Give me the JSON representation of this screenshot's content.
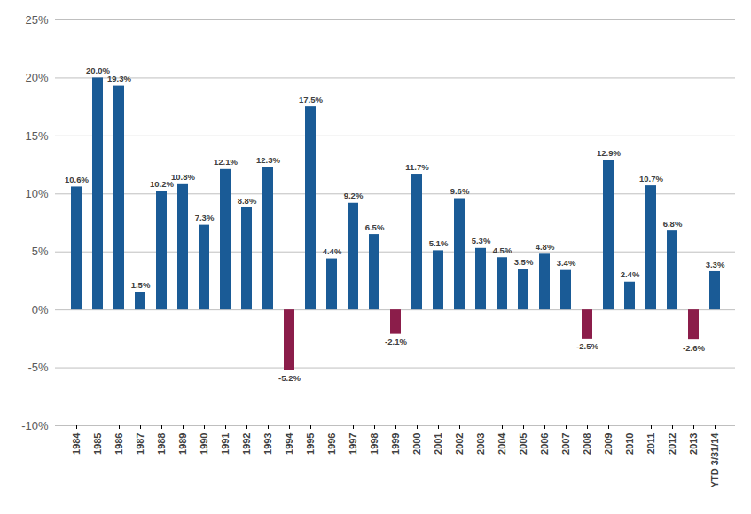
{
  "chart_data": {
    "type": "bar",
    "categories": [
      "1984",
      "1985",
      "1986",
      "1987",
      "1988",
      "1989",
      "1990",
      "1991",
      "1992",
      "1993",
      "1994",
      "1995",
      "1996",
      "1997",
      "1998",
      "1999",
      "2000",
      "2001",
      "2002",
      "2003",
      "2004",
      "2005",
      "2006",
      "2007",
      "2008",
      "2009",
      "2010",
      "2011",
      "2012",
      "2013",
      "YTD 3/31/14"
    ],
    "values": [
      10.6,
      20.0,
      19.3,
      1.5,
      10.2,
      10.8,
      7.3,
      12.1,
      8.8,
      12.3,
      -5.2,
      17.5,
      4.4,
      9.2,
      6.5,
      -2.1,
      11.7,
      5.1,
      9.6,
      5.3,
      4.5,
      3.5,
      4.8,
      3.4,
      -2.5,
      12.9,
      2.4,
      10.7,
      6.8,
      -2.6,
      3.3
    ],
    "value_labels": [
      "10.6%",
      "20.0%",
      "19.3%",
      "1.5%",
      "10.2%",
      "10.8%",
      "7.3%",
      "12.1%",
      "8.8%",
      "12.3%",
      "-5.2%",
      "17.5%",
      "4.4%",
      "9.2%",
      "6.5%",
      "-2.1%",
      "11.7%",
      "5.1%",
      "9.6%",
      "5.3%",
      "4.5%",
      "3.5%",
      "4.8%",
      "3.4%",
      "-2.5%",
      "12.9%",
      "2.4%",
      "10.7%",
      "6.8%",
      "-2.6%",
      "3.3%"
    ],
    "colors": [
      "#1a5b96",
      "#1a5b96",
      "#1a5b96",
      "#1a5b96",
      "#1a5b96",
      "#1a5b96",
      "#1a5b96",
      "#1a5b96",
      "#1a5b96",
      "#1a5b96",
      "#8b1d4a",
      "#1a5b96",
      "#1a5b96",
      "#1a5b96",
      "#1a5b96",
      "#8b1d4a",
      "#1a5b96",
      "#1a5b96",
      "#1a5b96",
      "#1a5b96",
      "#1a5b96",
      "#1a5b96",
      "#1a5b96",
      "#1a5b96",
      "#8b1d4a",
      "#1a5b96",
      "#1a5b96",
      "#1a5b96",
      "#1a5b96",
      "#8b1d4a",
      "#1a5b96"
    ],
    "ylim": [
      -10,
      25
    ],
    "yticks": [
      {
        "value": -10,
        "label": "-10%"
      },
      {
        "value": -5,
        "label": "-5%"
      },
      {
        "value": 0,
        "label": "0%"
      },
      {
        "value": 5,
        "label": "5%"
      },
      {
        "value": 10,
        "label": "10%"
      },
      {
        "value": 15,
        "label": "15%"
      },
      {
        "value": 20,
        "label": "20%"
      },
      {
        "value": 25,
        "label": "25%"
      }
    ],
    "grid": true,
    "data_labels": true
  }
}
